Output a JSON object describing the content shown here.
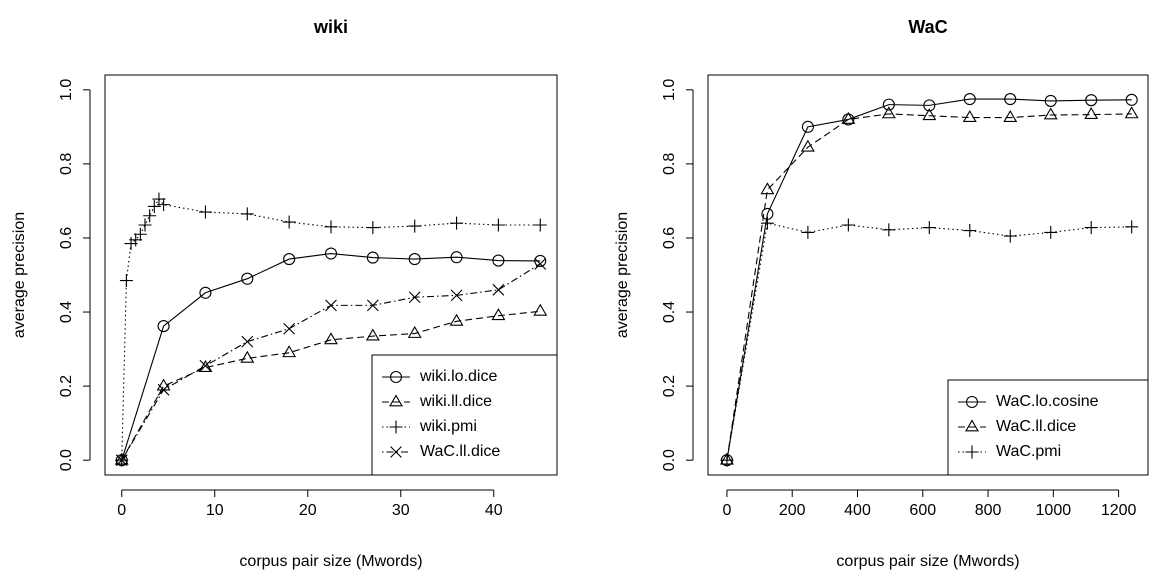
{
  "chart_data": [
    {
      "type": "line",
      "title": "wiki",
      "x_label": "corpus pair size (Mwords)",
      "y_label": "average precision",
      "xlim": [
        -1.8,
        46.8
      ],
      "ylim": [
        -0.04,
        1.04
      ],
      "xticks": [
        0,
        10,
        20,
        30,
        40
      ],
      "yticks": [
        {
          "value": 0,
          "label": "0.0"
        },
        0.2,
        0.4,
        0.6,
        0.8,
        {
          "value": 1,
          "label": "1.0"
        }
      ],
      "legend": "bottomright",
      "series": [
        {
          "name": "wiki.lo.dice",
          "color": "#000000",
          "marker": "circle",
          "dash": "solid",
          "x": [
            0,
            4.5,
            9,
            13.5,
            18,
            22.5,
            27,
            31.5,
            36,
            40.5,
            45
          ],
          "values": [
            0,
            0.362,
            0.452,
            0.49,
            0.543,
            0.558,
            0.547,
            0.543,
            0.548,
            0.539,
            0.538
          ]
        },
        {
          "name": "wiki.ll.dice",
          "color": "#000000",
          "marker": "triangle",
          "dash": "dashed",
          "x": [
            0,
            4.5,
            9,
            13.5,
            18,
            22.5,
            27,
            31.5,
            36,
            40.5,
            45
          ],
          "values": [
            0,
            0.2,
            0.25,
            0.275,
            0.29,
            0.325,
            0.335,
            0.342,
            0.375,
            0.39,
            0.402
          ]
        },
        {
          "name": "wiki.pmi",
          "color": "#000000",
          "marker": "plus",
          "dash": "dotted",
          "x": [
            0,
            0.5,
            1,
            1.5,
            2,
            2.5,
            3,
            3.5,
            4,
            4.5,
            9,
            13.5,
            18,
            22.5,
            27,
            31.5,
            36,
            40.5,
            45
          ],
          "values": [
            0,
            0.485,
            0.585,
            0.595,
            0.61,
            0.635,
            0.66,
            0.685,
            0.705,
            0.69,
            0.67,
            0.665,
            0.643,
            0.63,
            0.628,
            0.632,
            0.64,
            0.635,
            0.635
          ]
        },
        {
          "name": "WaC.ll.dice",
          "color": "#000000",
          "marker": "cross",
          "dash": "dotdash",
          "x": [
            0,
            4.5,
            9,
            13.5,
            18,
            22.5,
            27,
            31.5,
            36,
            40.5,
            45
          ],
          "values": [
            0,
            0.19,
            0.255,
            0.32,
            0.355,
            0.418,
            0.418,
            0.44,
            0.445,
            0.46,
            0.53
          ]
        }
      ]
    },
    {
      "type": "line",
      "title": "WaC",
      "x_label": "corpus pair size (Mwords)",
      "y_label": "average precision",
      "xlim": [
        -58,
        1290
      ],
      "ylim": [
        -0.04,
        1.04
      ],
      "xticks": [
        0,
        200,
        400,
        600,
        800,
        1000,
        1200
      ],
      "yticks": [
        {
          "value": 0,
          "label": "0.0"
        },
        0.2,
        0.4,
        0.6,
        0.8,
        {
          "value": 1,
          "label": "1.0"
        }
      ],
      "legend": "bottomright",
      "series": [
        {
          "name": "WaC.lo.cosine",
          "color": "#000000",
          "marker": "circle",
          "dash": "solid",
          "x": [
            0,
            124,
            248,
            372,
            496,
            620,
            744,
            868,
            992,
            1116,
            1240
          ],
          "values": [
            0,
            0.665,
            0.9,
            0.92,
            0.96,
            0.958,
            0.975,
            0.975,
            0.97,
            0.972,
            0.973
          ]
        },
        {
          "name": "WaC.ll.dice",
          "color": "#000000",
          "marker": "triangle",
          "dash": "dashed",
          "x": [
            0,
            124,
            248,
            372,
            496,
            620,
            744,
            868,
            992,
            1116,
            1240
          ],
          "values": [
            0,
            0.73,
            0.845,
            0.92,
            0.935,
            0.93,
            0.925,
            0.925,
            0.932,
            0.933,
            0.935
          ]
        },
        {
          "name": "WaC.pmi",
          "color": "#000000",
          "marker": "plus",
          "dash": "dotted",
          "x": [
            0,
            124,
            248,
            372,
            496,
            620,
            744,
            868,
            992,
            1116,
            1240
          ],
          "values": [
            0,
            0.64,
            0.615,
            0.635,
            0.622,
            0.628,
            0.62,
            0.605,
            0.615,
            0.628,
            0.63
          ]
        }
      ]
    }
  ]
}
